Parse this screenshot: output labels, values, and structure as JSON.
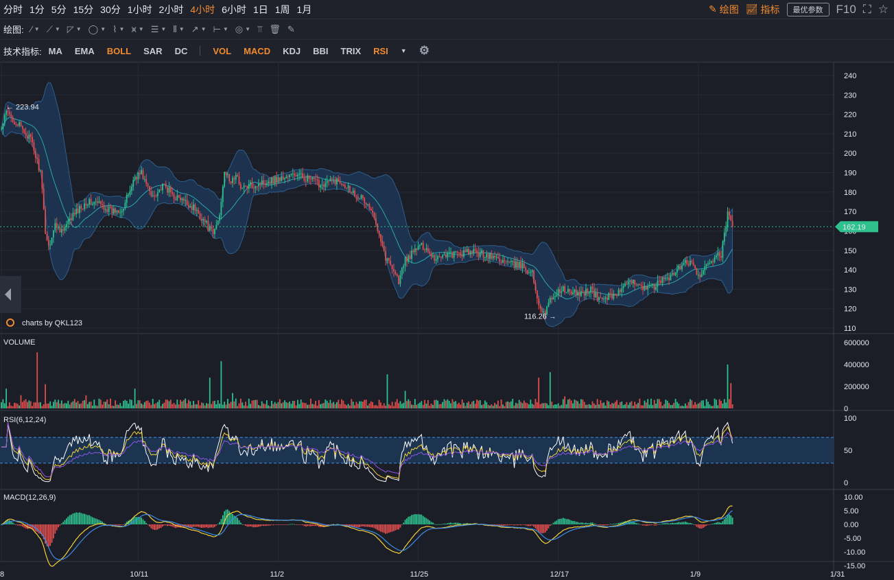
{
  "toolbar": {
    "periods": [
      "分时",
      "1分",
      "5分",
      "15分",
      "30分",
      "1小时",
      "2小时",
      "4小时",
      "6小时",
      "1日",
      "1周",
      "1月"
    ],
    "active_period": "4小时",
    "draw_btn": "绘图",
    "indicator_btn": "指标",
    "best_params": "最优参数",
    "f10": "F10"
  },
  "draw_row": {
    "label": "绘图:",
    "tools": [
      "line-tool-icon",
      "trend-tool-icon",
      "channel-tool-icon",
      "ellipse-tool-icon",
      "wave-tool-icon",
      "pattern-tool-icon",
      "fib-tool-icon",
      "gann-tool-icon",
      "arrow-tool-icon",
      "measure-tool-icon",
      "note-tool-icon",
      "bars-tool-icon",
      "trash-icon",
      "brush-icon"
    ]
  },
  "ind_row": {
    "label": "技术指标:",
    "main": [
      "MA",
      "EMA",
      "BOLL",
      "SAR",
      "DC"
    ],
    "sub": [
      "VOL",
      "MACD",
      "KDJ",
      "BBI",
      "TRIX",
      "RSI"
    ],
    "active": [
      "BOLL",
      "VOL",
      "MACD",
      "RSI"
    ]
  },
  "colors": {
    "up": "#2ec08d",
    "down": "#e24e4e",
    "accent": "#f28b2f",
    "boll_fill": "#1e3a5c",
    "boll_mid": "#2aa8b0",
    "rsi6": "#ffffff",
    "rsi12": "#f3d03b",
    "rsi24": "#8e55e6",
    "dif": "#f3d03b",
    "dea": "#3c8ce7",
    "price_tag": "#2ec08d"
  },
  "chart_data": {
    "type": "candlestick",
    "main": {
      "ylim": [
        110,
        240
      ],
      "yticks": [
        110,
        120,
        130,
        140,
        150,
        160,
        170,
        180,
        190,
        200,
        210,
        220,
        230,
        240
      ],
      "high_label": "← 223.94",
      "high_value": 223.94,
      "low_label": "116.26 →",
      "low_value": 116.26,
      "last_price": "162.19",
      "last_value": 162.19,
      "watermark": "charts by QKL123",
      "anchors": [
        [
          0,
          212
        ],
        [
          3,
          221
        ],
        [
          10,
          215
        ],
        [
          18,
          207
        ],
        [
          24,
          190
        ],
        [
          27,
          160
        ],
        [
          29,
          152
        ],
        [
          33,
          163
        ],
        [
          38,
          160
        ],
        [
          44,
          168
        ],
        [
          52,
          175
        ],
        [
          60,
          174
        ],
        [
          68,
          170
        ],
        [
          75,
          172
        ],
        [
          82,
          188
        ],
        [
          86,
          190
        ],
        [
          92,
          178
        ],
        [
          100,
          183
        ],
        [
          106,
          178
        ],
        [
          112,
          175
        ],
        [
          118,
          172
        ],
        [
          124,
          166
        ],
        [
          130,
          158
        ],
        [
          134,
          168
        ],
        [
          137,
          192
        ],
        [
          140,
          185
        ],
        [
          144,
          188
        ],
        [
          148,
          182
        ],
        [
          156,
          184
        ],
        [
          164,
          186
        ],
        [
          172,
          187
        ],
        [
          180,
          189
        ],
        [
          188,
          187
        ],
        [
          196,
          184
        ],
        [
          204,
          186
        ],
        [
          210,
          185
        ],
        [
          216,
          180
        ],
        [
          220,
          178
        ],
        [
          226,
          172
        ],
        [
          232,
          160
        ],
        [
          236,
          146
        ],
        [
          240,
          142
        ],
        [
          244,
          134
        ],
        [
          248,
          145
        ],
        [
          252,
          148
        ],
        [
          256,
          152
        ],
        [
          260,
          152
        ],
        [
          266,
          146
        ],
        [
          272,
          148
        ],
        [
          280,
          148
        ],
        [
          288,
          149
        ],
        [
          296,
          148
        ],
        [
          304,
          146
        ],
        [
          312,
          143
        ],
        [
          320,
          142
        ],
        [
          326,
          138
        ],
        [
          330,
          122
        ],
        [
          334,
          118
        ],
        [
          338,
          126
        ],
        [
          344,
          130
        ],
        [
          350,
          128
        ],
        [
          356,
          128
        ],
        [
          362,
          130
        ],
        [
          366,
          125
        ],
        [
          372,
          126
        ],
        [
          378,
          128
        ],
        [
          384,
          132
        ],
        [
          390,
          134
        ],
        [
          396,
          130
        ],
        [
          402,
          132
        ],
        [
          408,
          136
        ],
        [
          414,
          138
        ],
        [
          418,
          143
        ],
        [
          422,
          144
        ],
        [
          426,
          140
        ],
        [
          430,
          136
        ],
        [
          434,
          144
        ],
        [
          438,
          146
        ],
        [
          442,
          148
        ],
        [
          444,
          158
        ],
        [
          446,
          168
        ],
        [
          448,
          165
        ],
        [
          449,
          162.19
        ]
      ]
    },
    "volume": {
      "title": "VOLUME",
      "ylim": [
        0,
        600000
      ],
      "yticks": [
        0,
        200000,
        400000,
        600000
      ],
      "spikes": [
        [
          3,
          180000
        ],
        [
          12,
          120000
        ],
        [
          22,
          510000
        ],
        [
          27,
          220000
        ],
        [
          52,
          120000
        ],
        [
          82,
          180000
        ],
        [
          128,
          280000
        ],
        [
          135,
          430000
        ],
        [
          142,
          140000
        ],
        [
          237,
          310000
        ],
        [
          248,
          160000
        ],
        [
          330,
          280000
        ],
        [
          337,
          330000
        ],
        [
          346,
          110000
        ],
        [
          446,
          400000
        ],
        [
          448,
          230000
        ]
      ]
    },
    "rsi": {
      "title": "RSI(6,12,24)",
      "ylim": [
        0,
        100
      ],
      "yticks": [
        0,
        50,
        100
      ],
      "bands": [
        30,
        70
      ],
      "series": [
        "RSI6",
        "RSI12",
        "RSI24"
      ]
    },
    "macd": {
      "title": "MACD(12,26,9)",
      "ylim": [
        -15,
        10
      ],
      "yticks": [
        "10.00",
        "5.00",
        "0.00",
        "-5.00",
        "-10.00",
        "-15.00"
      ],
      "series": [
        "DIF",
        "DEA",
        "MACD"
      ]
    },
    "xticks": [
      {
        "label": "8",
        "index": 0
      },
      {
        "label": "10/11",
        "index": 84
      },
      {
        "label": "11/2",
        "index": 170
      },
      {
        "label": "11/25",
        "index": 256
      },
      {
        "label": "12/17",
        "index": 342
      },
      {
        "label": "1/9",
        "index": 428
      },
      {
        "label": "1/31",
        "index": 514
      }
    ],
    "bars": 450
  }
}
